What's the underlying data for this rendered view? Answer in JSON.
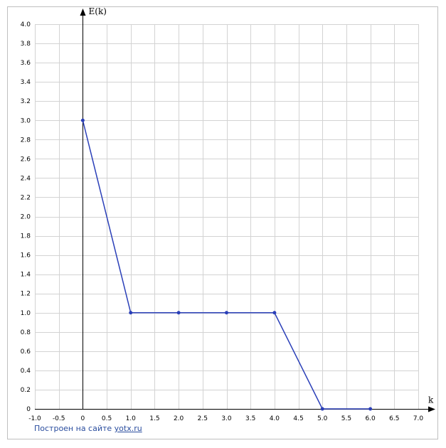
{
  "chart_data": {
    "type": "line",
    "title": "",
    "xlabel": "k",
    "ylabel": "E(k)",
    "xlim": [
      -1.0,
      7.0
    ],
    "ylim": [
      0,
      4.0
    ],
    "x_ticks": [
      "-1.0",
      "-0.5",
      "0",
      "0.5",
      "1.0",
      "1.5",
      "2.0",
      "2.5",
      "3.0",
      "3.5",
      "4.0",
      "4.5",
      "5.0",
      "5.5",
      "6.0",
      "6.5",
      "7.0"
    ],
    "y_ticks": [
      "0",
      "0.2",
      "0.4",
      "0.6",
      "0.8",
      "1.0",
      "1.2",
      "1.4",
      "1.6",
      "1.8",
      "2.0",
      "2.2",
      "2.4",
      "2.6",
      "2.8",
      "3.0",
      "3.2",
      "3.4",
      "3.6",
      "3.8",
      "4.0"
    ],
    "grid": true,
    "series": [
      {
        "x": [
          0,
          1,
          2,
          3,
          4,
          5,
          6
        ],
        "values": [
          3,
          1,
          1,
          1,
          1,
          0,
          0
        ]
      }
    ],
    "colors": {
      "line": "#2a3fb8",
      "grid": "#d3d3d3",
      "axis": "#000000"
    }
  },
  "footer": {
    "text": "Построен на сайте ",
    "link": "yotx.ru"
  }
}
